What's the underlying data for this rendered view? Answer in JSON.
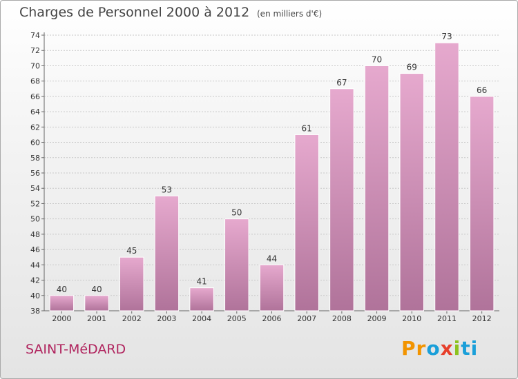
{
  "header": {
    "title": "Charges de Personnel 2000 à 2012",
    "subtitle": "(en milliers d'€)"
  },
  "footer": {
    "commune": "SAINT-MéDARD",
    "logo_parts": [
      "Pr",
      "o",
      "x",
      "i",
      "ti"
    ]
  },
  "colors": {
    "bar_top": "#e6a9ce",
    "bar_bottom": "#b0739a",
    "commune_text": "#b0245e",
    "grid": "#c8c8c8"
  },
  "chart_data": {
    "type": "bar",
    "title": "Charges de Personnel 2000 à 2012",
    "subtitle": "(en milliers d'€)",
    "categories": [
      "2000",
      "2001",
      "2002",
      "2003",
      "2004",
      "2005",
      "2006",
      "2007",
      "2008",
      "2009",
      "2010",
      "2011",
      "2012"
    ],
    "values": [
      40,
      40,
      45,
      53,
      41,
      50,
      44,
      61,
      67,
      70,
      69,
      73,
      66
    ],
    "ylim": [
      38,
      74
    ],
    "yticks": [
      38,
      40,
      42,
      44,
      46,
      48,
      50,
      52,
      54,
      56,
      58,
      60,
      62,
      64,
      66,
      68,
      70,
      72,
      74
    ],
    "grid": true,
    "data_labels": true
  }
}
